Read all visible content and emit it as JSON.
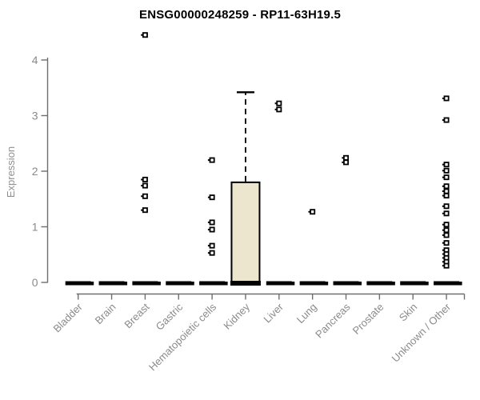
{
  "chart_data": {
    "type": "boxplot",
    "title": "ENSG00000248259 - RP11-63H19.5",
    "ylabel": "Expression",
    "yticks": [
      0,
      1,
      2,
      3,
      4
    ],
    "ylim": [
      0,
      4.55
    ],
    "grid": false,
    "legend": "none",
    "colors": {
      "box_fill": "#EDE6CF",
      "box_border": "#000000",
      "axis_line": "#6E6E6E",
      "tick_label": "#8A8A8A",
      "title": "#000000",
      "point": "#000000"
    },
    "categories": [
      "Bladder",
      "Brain",
      "Breast",
      "Gastric",
      "Hematopoietic cells",
      "Kidney",
      "Liver",
      "Lung",
      "Pancreas",
      "Prostate",
      "Skin",
      "Unknown / Other"
    ],
    "groups": [
      {
        "name": "Bladder",
        "median": 0,
        "q1": 0,
        "q3": 0,
        "whisker_low": 0,
        "whisker_high": 0,
        "points": []
      },
      {
        "name": "Brain",
        "median": 0,
        "q1": 0,
        "q3": 0,
        "whisker_low": 0,
        "whisker_high": 0,
        "points": []
      },
      {
        "name": "Breast",
        "median": 0,
        "q1": 0,
        "q3": 0,
        "whisker_low": 0,
        "whisker_high": 0,
        "points": [
          4.45,
          1.85,
          1.74,
          1.55,
          1.3
        ]
      },
      {
        "name": "Gastric",
        "median": 0,
        "q1": 0,
        "q3": 0,
        "whisker_low": 0,
        "whisker_high": 0,
        "points": []
      },
      {
        "name": "Hematopoietic cells",
        "median": 0,
        "q1": 0,
        "q3": 0,
        "whisker_low": 0,
        "whisker_high": 0,
        "points": [
          2.2,
          1.53,
          1.08,
          0.95,
          0.66,
          0.53
        ]
      },
      {
        "name": "Kidney",
        "median": 0,
        "q1": 0,
        "q3": 1.8,
        "whisker_low": 0,
        "whisker_high": 3.42,
        "points": []
      },
      {
        "name": "Liver",
        "median": 0,
        "q1": 0,
        "q3": 0,
        "whisker_low": 0,
        "whisker_high": 0,
        "points": [
          3.22,
          3.11
        ]
      },
      {
        "name": "Lung",
        "median": 0,
        "q1": 0,
        "q3": 0,
        "whisker_low": 0,
        "whisker_high": 0,
        "points": [
          1.27
        ]
      },
      {
        "name": "Pancreas",
        "median": 0,
        "q1": 0,
        "q3": 0,
        "whisker_low": 0,
        "whisker_high": 0,
        "points": [
          2.24,
          2.16
        ]
      },
      {
        "name": "Prostate",
        "median": 0,
        "q1": 0,
        "q3": 0,
        "whisker_low": 0,
        "whisker_high": 0,
        "points": []
      },
      {
        "name": "Skin",
        "median": 0,
        "q1": 0,
        "q3": 0,
        "whisker_low": 0,
        "whisker_high": 0,
        "points": []
      },
      {
        "name": "Unknown / Other",
        "median": 0,
        "q1": 0,
        "q3": 0,
        "whisker_low": 0,
        "whisker_high": 0,
        "points": [
          3.31,
          2.92,
          2.12,
          2.01,
          1.89,
          1.73,
          1.64,
          1.56,
          1.37,
          1.24,
          1.04,
          0.94,
          0.85,
          0.71,
          0.58,
          0.51,
          0.44,
          0.37,
          0.3
        ]
      }
    ]
  }
}
